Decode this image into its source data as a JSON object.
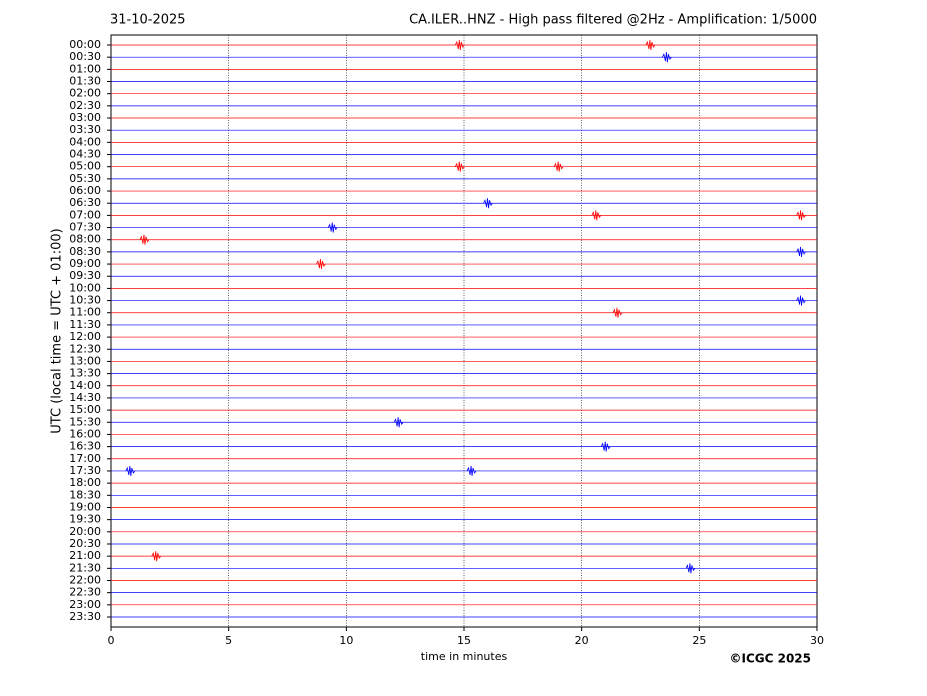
{
  "chart_data": {
    "type": "helicorder",
    "date": "31-10-2025",
    "title": "CA.ILER..HNZ - High pass filtered @2Hz - Amplification: 1/5000",
    "ylabel": "UTC (local time = UTC + 01:00)",
    "xlabel": "time in minutes",
    "credit": "©ICGC 2025",
    "categories": [
      "00:00",
      "00:30",
      "01:00",
      "01:30",
      "02:00",
      "02:30",
      "03:00",
      "03:30",
      "04:00",
      "04:30",
      "05:00",
      "05:30",
      "06:00",
      "06:30",
      "07:00",
      "07:30",
      "08:00",
      "08:30",
      "09:00",
      "09:30",
      "10:00",
      "10:30",
      "11:00",
      "11:30",
      "12:00",
      "12:30",
      "13:00",
      "13:30",
      "14:00",
      "14:30",
      "15:00",
      "15:30",
      "16:00",
      "16:30",
      "17:00",
      "17:30",
      "18:00",
      "18:30",
      "19:00",
      "19:30",
      "20:00",
      "20:30",
      "21:00",
      "21:30",
      "22:00",
      "22:30",
      "23:00",
      "23:30"
    ],
    "colors": [
      "#ff0000",
      "#0000ff"
    ],
    "xlim": [
      0,
      30
    ],
    "xticks": [
      0,
      5,
      10,
      15,
      20,
      25,
      30
    ],
    "grid": true,
    "events": [
      {
        "row": 0,
        "x": 22.9
      },
      {
        "row": 0,
        "x": 14.8
      },
      {
        "row": 1,
        "x": 23.6
      },
      {
        "row": 10,
        "x": 14.8
      },
      {
        "row": 10,
        "x": 19.0
      },
      {
        "row": 13,
        "x": 16.0
      },
      {
        "row": 14,
        "x": 20.6
      },
      {
        "row": 14,
        "x": 29.3
      },
      {
        "row": 15,
        "x": 9.4
      },
      {
        "row": 16,
        "x": 1.4
      },
      {
        "row": 17,
        "x": 29.3
      },
      {
        "row": 18,
        "x": 8.9
      },
      {
        "row": 21,
        "x": 29.3
      },
      {
        "row": 22,
        "x": 21.5
      },
      {
        "row": 31,
        "x": 12.2
      },
      {
        "row": 33,
        "x": 21.0
      },
      {
        "row": 35,
        "x": 0.8
      },
      {
        "row": 35,
        "x": 15.3
      },
      {
        "row": 42,
        "x": 1.9
      },
      {
        "row": 43,
        "x": 24.6
      }
    ]
  }
}
